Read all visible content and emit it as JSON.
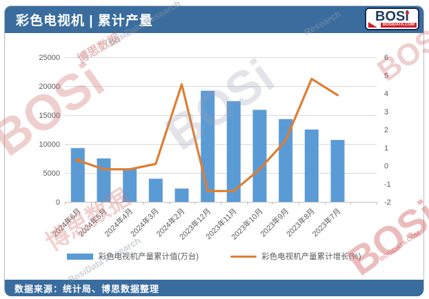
{
  "header": {
    "title": "彩色电视机 | 累计产量",
    "logo": {
      "text": "BOSi",
      "site": "BOSIDATA.COM"
    }
  },
  "footer": {
    "source": "数据来源：统计局、博思数据整理"
  },
  "watermarks": {
    "brand": "BOSi",
    "brand_cn": "博思数据",
    "brand_en": "BosiData Research",
    "site": "BOSIDATA.COM",
    "research": "Research"
  },
  "colors": {
    "header_blue": "#3a6c9e",
    "bar_blue": "#5b9bd5",
    "line_orange": "#dd7e32",
    "grid": "#d9d9d9",
    "axis_line": "#bfbfbf",
    "axis_text": "#595959"
  },
  "chart_data": {
    "type": "bar",
    "subtype": "bar-line-combo",
    "categories": [
      "2024年6月",
      "2024年5月",
      "2024年4月",
      "2024年3月",
      "2024年2月",
      "2023年12月",
      "2023年11月",
      "2023年10月",
      "2023年9月",
      "2023年8月",
      "2023年7月"
    ],
    "series": [
      {
        "name": "彩色电视机产量累计值(万台)",
        "type": "bar",
        "axis": "left",
        "values": [
          9300,
          7500,
          5700,
          4000,
          2300,
          19200,
          17400,
          15900,
          14300,
          12500,
          10700
        ]
      },
      {
        "name": "彩色电视机产量累计增长(%)",
        "type": "line",
        "axis": "right",
        "values": [
          0.3,
          -0.2,
          -0.2,
          0.1,
          4.5,
          -1.4,
          -1.4,
          -0.2,
          1.4,
          4.8,
          3.9
        ]
      }
    ],
    "title": "彩色电视机 | 累计产量",
    "xlabel": "",
    "ylabel_left": "万台",
    "ylabel_right": "%",
    "left_axis": {
      "min": 0,
      "max": 25000,
      "step": 5000
    },
    "right_axis": {
      "min": -2,
      "max": 6,
      "step": 1
    },
    "x_slots": 12,
    "grid": true,
    "legend_position": "bottom"
  }
}
